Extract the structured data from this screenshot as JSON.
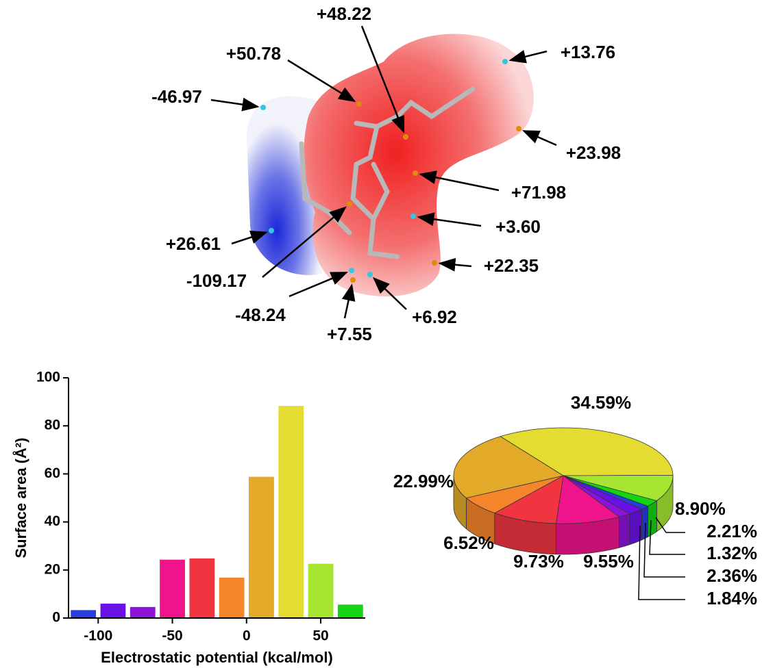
{
  "surface_labels": [
    "+48.22",
    "+50.78",
    "+13.76",
    "-46.97",
    "+23.98",
    "+71.98",
    "+3.60",
    "+26.61",
    "-109.17",
    "+22.35",
    "-48.24",
    "+6.92",
    "+7.55"
  ],
  "chart_data": [
    {
      "type": "bar",
      "x_label": "Electrostatic potential (kcal/mol)",
      "y_label": "Surface area (Å²)",
      "x": [
        -110,
        -90,
        -70,
        -50,
        -30,
        -10,
        10,
        30,
        50,
        70
      ],
      "values": [
        3.3,
        6.0,
        4.6,
        24.3,
        24.8,
        16.8,
        58.8,
        88.3,
        22.6,
        5.6
      ],
      "colors": [
        "#2a3ee0",
        "#6a12e6",
        "#8c14d8",
        "#f0148c",
        "#f03440",
        "#f5852a",
        "#e2aa28",
        "#e4dc30",
        "#a6e632",
        "#14d414"
      ],
      "xlim": [
        -120,
        80
      ],
      "xticks": [
        -100,
        -50,
        0,
        50
      ],
      "ylim": [
        0,
        100
      ],
      "yticks": [
        0,
        20,
        40,
        60,
        80,
        100
      ]
    },
    {
      "type": "pie",
      "values": [
        34.59,
        8.9,
        2.21,
        1.32,
        2.36,
        1.84,
        9.55,
        9.73,
        6.52,
        22.99
      ],
      "value_labels": [
        "34.59%",
        "8.90%",
        "2.21%",
        "1.32%",
        "2.36%",
        "1.84%",
        "9.55%",
        "9.73%",
        "6.52%",
        "22.99%"
      ],
      "colors": [
        "#e4dc30",
        "#a6e632",
        "#14d414",
        "#2a3ee0",
        "#6a12e6",
        "#8c14d8",
        "#f0148c",
        "#f03440",
        "#f5852a",
        "#e2aa28"
      ]
    }
  ]
}
